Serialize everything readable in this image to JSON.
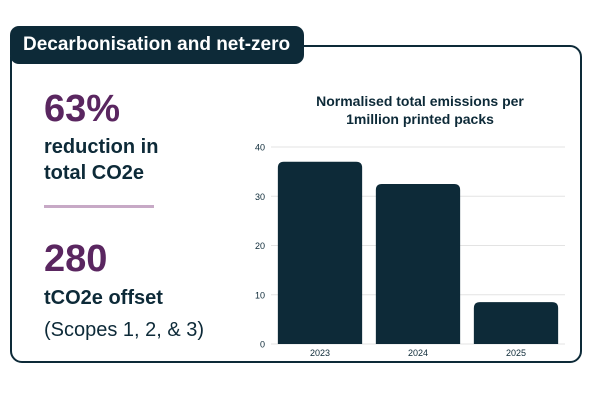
{
  "header": {
    "title": "Decarbonisation and net-zero"
  },
  "stats": {
    "reduction": {
      "value": "63%",
      "label_line1": "reduction in",
      "label_line2": "total CO2e"
    },
    "offset": {
      "value": "280",
      "label": "tCO2e offset",
      "note": "(Scopes 1, 2, & 3)"
    }
  },
  "colors": {
    "primary": "#0d2a38",
    "accent": "#5a2660",
    "divider": "#c7a9c6",
    "grid": "#e3e3e3"
  },
  "chart_data": {
    "type": "bar",
    "title_line1": "Normalised total emissions per",
    "title_line2": "1million printed packs",
    "categories": [
      "2023",
      "2024",
      "2025"
    ],
    "values": [
      37,
      32.5,
      8.5
    ],
    "ylim": [
      0,
      40
    ],
    "yticks": [
      0,
      10,
      20,
      30,
      40
    ],
    "grid": true,
    "xlabel": "",
    "ylabel": ""
  }
}
